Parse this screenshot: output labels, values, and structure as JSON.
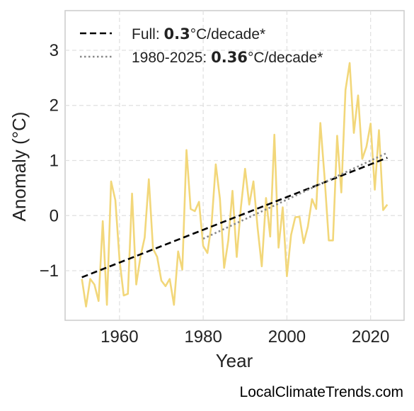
{
  "chart_data": {
    "type": "line",
    "xlabel": "Year",
    "ylabel": "Anomaly (°C)",
    "xlim": [
      1947,
      2028
    ],
    "ylim": [
      -1.9,
      3.72
    ],
    "xticks": [
      1960,
      1980,
      2000,
      2020
    ],
    "yticks": [
      -1,
      0,
      1,
      2,
      3
    ],
    "ytick_labels": [
      "−1",
      "0",
      "1",
      "2",
      "3"
    ],
    "grid": true,
    "legend_position": "top-left",
    "series": [
      {
        "kind": "anomaly",
        "color": "#f2d77a",
        "x": [
          1951,
          1952,
          1953,
          1954,
          1955,
          1956,
          1957,
          1958,
          1959,
          1960,
          1961,
          1962,
          1963,
          1964,
          1965,
          1966,
          1967,
          1968,
          1969,
          1970,
          1971,
          1972,
          1973,
          1974,
          1975,
          1976,
          1977,
          1978,
          1979,
          1980,
          1981,
          1982,
          1983,
          1984,
          1985,
          1986,
          1987,
          1988,
          1989,
          1990,
          1991,
          1992,
          1993,
          1994,
          1995,
          1996,
          1997,
          1998,
          1999,
          2000,
          2001,
          2002,
          2003,
          2004,
          2005,
          2006,
          2007,
          2008,
          2009,
          2010,
          2011,
          2012,
          2013,
          2014,
          2015,
          2016,
          2017,
          2018,
          2019,
          2020,
          2021,
          2022,
          2023,
          2024
        ],
        "values": [
          -1.15,
          -1.65,
          -1.15,
          -1.25,
          -1.55,
          -0.1,
          -1.62,
          0.62,
          0.28,
          -0.8,
          -1.45,
          -1.42,
          0.4,
          -1.25,
          -0.75,
          -0.4,
          0.66,
          -0.6,
          -0.75,
          -1.18,
          -1.28,
          -1.15,
          -1.62,
          -0.65,
          -0.98,
          1.19,
          0.12,
          0.08,
          0.25,
          -0.55,
          -0.68,
          -0.15,
          0.93,
          0.3,
          -0.95,
          -0.45,
          0.45,
          -0.75,
          0.15,
          0.85,
          0.2,
          0.62,
          -0.22,
          -0.92,
          0.32,
          -0.38,
          1.47,
          -0.58,
          0.15,
          -1.1,
          -0.35,
          -0.03,
          -0.02,
          -0.5,
          -0.2,
          0.3,
          0.12,
          1.68,
          0.7,
          -0.45,
          -0.45,
          1.45,
          0.42,
          2.28,
          2.77,
          1.5,
          2.18,
          1.03,
          1.25,
          1.67,
          0.47,
          1.55,
          0.1,
          0.2
        ]
      },
      {
        "kind": "trend-full",
        "name": "Full: ",
        "rate": "0.3",
        "unit": "°C/decade*",
        "color": "#000000",
        "x": [
          1951,
          2024
        ],
        "values": [
          -1.12,
          1.05
        ]
      },
      {
        "kind": "trend-recent",
        "name": "1980-2025: ",
        "rate": "0.36",
        "unit": "°C/decade*",
        "color": "#888888",
        "x": [
          1980,
          2024
        ],
        "values": [
          -0.42,
          1.14
        ]
      }
    ]
  },
  "watermark": "LocalClimateTrends.com"
}
